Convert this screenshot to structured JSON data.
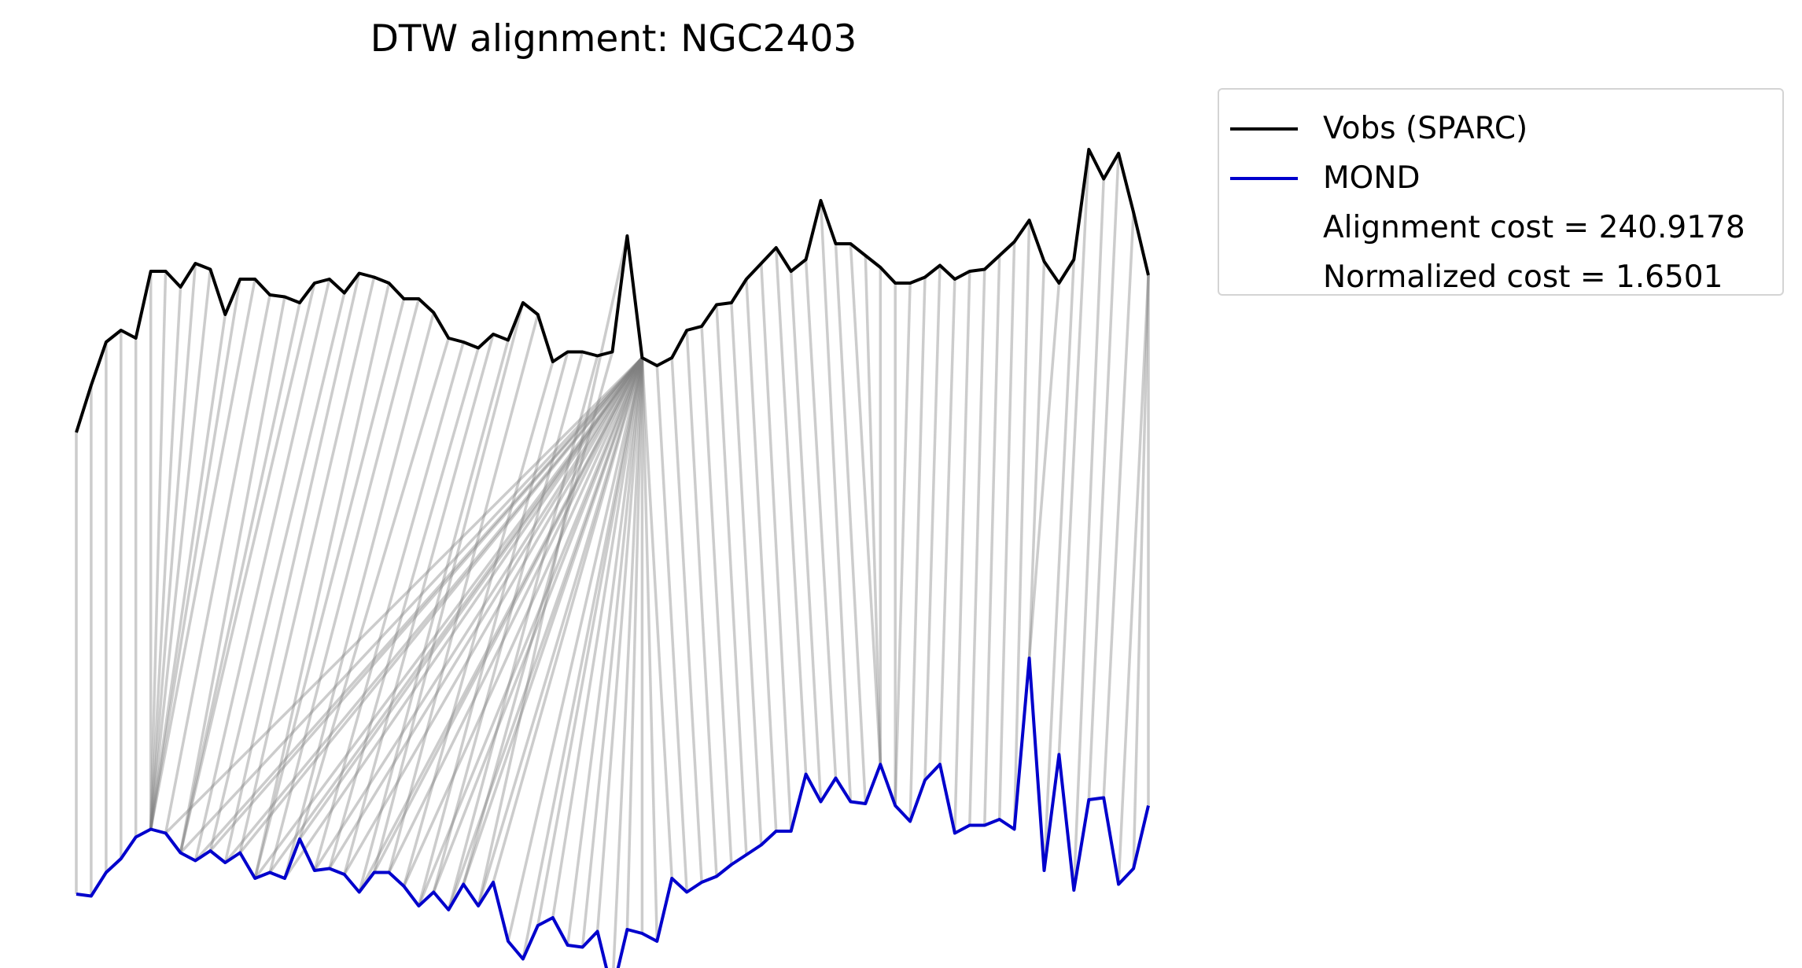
{
  "title": "DTW alignment: NGC2403",
  "legend": {
    "items": [
      {
        "label": "Vobs (SPARC)",
        "color": "#000000"
      },
      {
        "label": "MOND",
        "color": "#0000cc"
      }
    ],
    "cost_text": "Alignment cost = 240.9178",
    "norm_text": "Normalized cost = 1.6501"
  },
  "chart_data": {
    "type": "line",
    "title": "DTW alignment: NGC2403",
    "xlabel": "",
    "ylabel": "",
    "axes_visible": false,
    "grid": false,
    "legend_position": "outside-right-top",
    "connector_color": "#808080",
    "series": [
      {
        "name": "Vobs (SPARC)",
        "color": "#000000",
        "values": [
          -2.0,
          -0.8,
          0.3,
          0.6,
          0.4,
          2.1,
          2.1,
          1.7,
          2.3,
          2.15,
          1.0,
          1.9,
          1.9,
          1.5,
          1.45,
          1.3,
          1.8,
          1.9,
          1.55,
          2.05,
          1.95,
          1.8,
          1.4,
          1.4,
          1.05,
          0.4,
          0.3,
          0.15,
          0.5,
          0.35,
          1.3,
          1.0,
          -0.2,
          0.05,
          0.05,
          -0.05,
          0.05,
          3.0,
          -0.1,
          -0.3,
          -0.1,
          0.6,
          0.7,
          1.25,
          1.3,
          1.9,
          2.3,
          2.7,
          2.1,
          2.4,
          3.9,
          2.8,
          2.8,
          2.5,
          2.2,
          1.8,
          1.8,
          1.95,
          2.25,
          1.9,
          2.1,
          2.15,
          2.5,
          2.85,
          3.4,
          2.35,
          1.8,
          2.4,
          5.2,
          4.45,
          5.1,
          3.6,
          2.0
        ]
      },
      {
        "name": "MOND",
        "color": "#0000cc",
        "values": [
          -2.0,
          -2.05,
          -1.45,
          -1.1,
          -0.55,
          -0.35,
          -0.45,
          -0.95,
          -1.15,
          -0.9,
          -1.2,
          -0.95,
          -1.6,
          -1.45,
          -1.6,
          -0.6,
          -1.4,
          -1.35,
          -1.5,
          -1.95,
          -1.45,
          -1.45,
          -1.8,
          -2.3,
          -1.95,
          -2.4,
          -1.75,
          -2.3,
          -1.7,
          -3.2,
          -3.65,
          -2.8,
          -2.6,
          -3.3,
          -3.35,
          -2.95,
          -4.5,
          -2.9,
          -3.0,
          -3.2,
          -1.6,
          -1.95,
          -1.7,
          -1.55,
          -1.25,
          -1.0,
          -0.75,
          -0.4,
          -0.4,
          1.05,
          0.35,
          0.95,
          0.35,
          0.3,
          1.3,
          0.25,
          -0.15,
          0.9,
          1.3,
          -0.45,
          -0.25,
          -0.25,
          -0.1,
          -0.35,
          4.0,
          -1.4,
          1.55,
          -1.9,
          0.4,
          0.45,
          -1.75,
          -1.35,
          0.25
        ]
      }
    ],
    "alignment": [
      [
        0,
        0
      ],
      [
        1,
        1
      ],
      [
        2,
        2
      ],
      [
        3,
        3
      ],
      [
        4,
        4
      ],
      [
        5,
        5
      ],
      [
        6,
        5
      ],
      [
        7,
        5
      ],
      [
        8,
        5
      ],
      [
        9,
        5
      ],
      [
        10,
        5
      ],
      [
        11,
        5
      ],
      [
        12,
        5
      ],
      [
        13,
        6
      ],
      [
        14,
        7
      ],
      [
        15,
        7
      ],
      [
        16,
        7
      ],
      [
        17,
        8
      ],
      [
        18,
        9
      ],
      [
        19,
        10
      ],
      [
        20,
        11
      ],
      [
        21,
        12
      ],
      [
        22,
        12
      ],
      [
        23,
        13
      ],
      [
        24,
        14
      ],
      [
        25,
        15
      ],
      [
        26,
        16
      ],
      [
        27,
        17
      ],
      [
        28,
        18
      ],
      [
        29,
        19
      ],
      [
        30,
        20
      ],
      [
        31,
        21
      ],
      [
        32,
        22
      ],
      [
        33,
        23
      ],
      [
        34,
        24
      ],
      [
        35,
        25
      ],
      [
        36,
        26
      ],
      [
        37,
        27
      ],
      [
        38,
        6
      ],
      [
        38,
        7
      ],
      [
        38,
        8
      ],
      [
        38,
        9
      ],
      [
        38,
        10
      ],
      [
        38,
        11
      ],
      [
        38,
        12
      ],
      [
        38,
        13
      ],
      [
        38,
        14
      ],
      [
        38,
        15
      ],
      [
        38,
        16
      ],
      [
        38,
        17
      ],
      [
        38,
        18
      ],
      [
        38,
        19
      ],
      [
        38,
        20
      ],
      [
        38,
        21
      ],
      [
        38,
        22
      ],
      [
        38,
        23
      ],
      [
        38,
        24
      ],
      [
        38,
        25
      ],
      [
        38,
        26
      ],
      [
        38,
        27
      ],
      [
        38,
        28
      ],
      [
        38,
        29
      ],
      [
        38,
        30
      ],
      [
        38,
        31
      ],
      [
        38,
        32
      ],
      [
        38,
        33
      ],
      [
        38,
        34
      ],
      [
        38,
        35
      ],
      [
        38,
        36
      ],
      [
        38,
        37
      ],
      [
        38,
        38
      ],
      [
        38,
        39
      ],
      [
        38,
        40
      ],
      [
        39,
        41
      ],
      [
        40,
        42
      ],
      [
        41,
        43
      ],
      [
        42,
        44
      ],
      [
        43,
        45
      ],
      [
        44,
        46
      ],
      [
        45,
        47
      ],
      [
        46,
        48
      ],
      [
        47,
        49
      ],
      [
        48,
        50
      ],
      [
        49,
        51
      ],
      [
        50,
        52
      ],
      [
        51,
        53
      ],
      [
        52,
        54
      ],
      [
        53,
        54
      ],
      [
        54,
        54
      ],
      [
        55,
        55
      ],
      [
        56,
        55
      ],
      [
        57,
        56
      ],
      [
        58,
        57
      ],
      [
        59,
        58
      ],
      [
        60,
        59
      ],
      [
        61,
        60
      ],
      [
        62,
        61
      ],
      [
        63,
        62
      ],
      [
        64,
        63
      ],
      [
        65,
        64
      ],
      [
        66,
        64
      ],
      [
        67,
        65
      ],
      [
        68,
        66
      ],
      [
        69,
        67
      ],
      [
        70,
        68
      ],
      [
        71,
        69
      ],
      [
        72,
        70
      ],
      [
        72,
        71
      ],
      [
        72,
        72
      ]
    ]
  }
}
